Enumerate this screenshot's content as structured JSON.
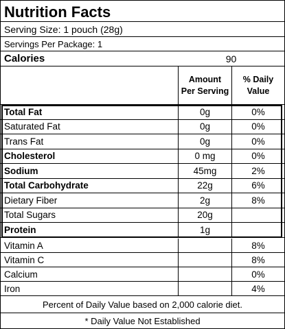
{
  "title": "Nutrition Facts",
  "serving_size": "Serving Size: 1 pouch (28g)",
  "servings_per_package": "Servings Per Package: 1",
  "calories": {
    "label": "Calories",
    "value": "90"
  },
  "columns": {
    "amount_line1": "Amount",
    "amount_line2": "Per Serving",
    "dv_line1": "% Daily",
    "dv_line2": "Value"
  },
  "nutrients": [
    {
      "name": "Total Fat",
      "amount": "0g",
      "dv": "0%"
    },
    {
      "name": "Saturated Fat",
      "amount": "0g",
      "dv": "0%"
    },
    {
      "name": "Trans Fat",
      "amount": "0g",
      "dv": "0%"
    },
    {
      "name": "Cholesterol",
      "amount": "0 mg",
      "dv": "0%"
    },
    {
      "name": "Sodium",
      "amount": "45mg",
      "dv": "2%"
    },
    {
      "name": "Total Carbohydrate",
      "amount": "22g",
      "dv": "6%"
    },
    {
      "name": "Dietary Fiber",
      "amount": "2g",
      "dv": "8%"
    },
    {
      "name": "Total Sugars",
      "amount": "20g",
      "dv": ""
    },
    {
      "name": "Protein",
      "amount": "1g",
      "dv": ""
    }
  ],
  "vitamins": [
    {
      "name": "Vitamin A",
      "amount": "",
      "dv": "8%"
    },
    {
      "name": "Vitamin C",
      "amount": "",
      "dv": "8%"
    },
    {
      "name": "Calcium",
      "amount": "",
      "dv": "0%"
    },
    {
      "name": "Iron",
      "amount": "",
      "dv": "4%"
    }
  ],
  "footnote_1": "Percent of Daily Value based on 2,000 calorie diet.",
  "footnote_2": "* Daily Value Not Established"
}
